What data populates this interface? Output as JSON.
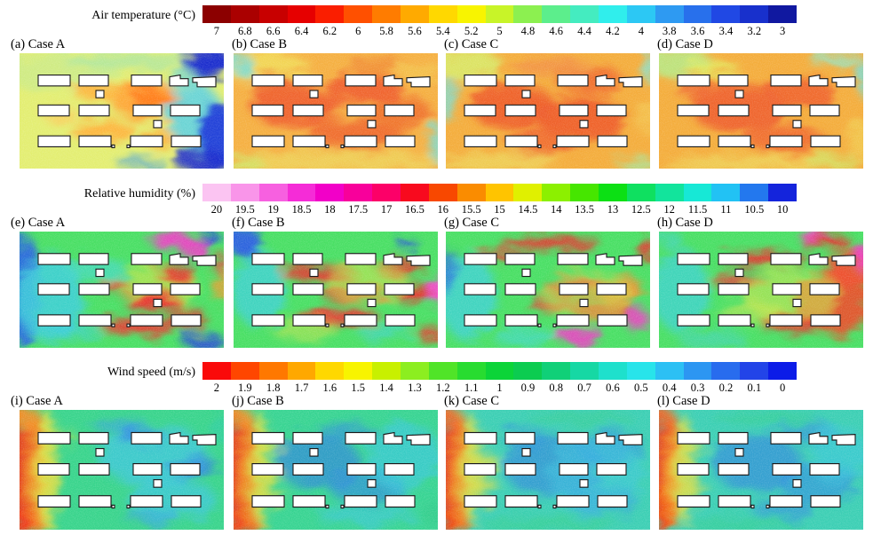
{
  "figure": {
    "sections": [
      {
        "id": "air-temperature",
        "colorbar": {
          "label": "Air temperature (°C)",
          "ticks": [
            "7",
            "6.8",
            "6.6",
            "6.4",
            "6.2",
            "6",
            "5.8",
            "5.6",
            "5.4",
            "5.2",
            "5",
            "4.8",
            "4.6",
            "4.4",
            "4.2",
            "4",
            "3.8",
            "3.6",
            "3.4",
            "3.2",
            "3"
          ],
          "colors": [
            "#8c0000",
            "#aa0000",
            "#c80000",
            "#e60000",
            "#fa1e00",
            "#ff5000",
            "#ff7c00",
            "#ffaa00",
            "#ffd800",
            "#f8f400",
            "#c8f428",
            "#8cf050",
            "#5cee8c",
            "#44ecc0",
            "#30eeec",
            "#2cc8f4",
            "#2e9af2",
            "#2870ec",
            "#2048e4",
            "#1830cc",
            "#1018a0"
          ]
        },
        "panels": [
          {
            "label": "(a) Case A"
          },
          {
            "label": "(b) Case B"
          },
          {
            "label": "(c) Case C"
          },
          {
            "label": "(d) Case D"
          }
        ]
      },
      {
        "id": "relative-humidity",
        "colorbar": {
          "label": "Relative humidity (%)",
          "ticks": [
            "20",
            "19.5",
            "19",
            "18.5",
            "18",
            "17.5",
            "17",
            "16.5",
            "16",
            "15.5",
            "15",
            "14.5",
            "14",
            "13.5",
            "13",
            "12.5",
            "12",
            "11.5",
            "11",
            "10.5",
            "10"
          ],
          "colors": [
            "#fbc4f2",
            "#f995e9",
            "#f760e0",
            "#f52cd7",
            "#f200c8",
            "#f8009b",
            "#fc0068",
            "#f80a1e",
            "#f84800",
            "#fa8c00",
            "#ffc400",
            "#e0f000",
            "#8cf000",
            "#46e600",
            "#0ce014",
            "#0fe060",
            "#12e49c",
            "#17e8d6",
            "#22c2f4",
            "#2378ee",
            "#1424dc"
          ]
        },
        "panels": [
          {
            "label": "(e) Case A"
          },
          {
            "label": "(f) Case B"
          },
          {
            "label": "(g) Case C"
          },
          {
            "label": "(h) Case D"
          }
        ]
      },
      {
        "id": "wind-speed",
        "colorbar": {
          "label": "Wind speed (m/s)",
          "ticks": [
            "2",
            "1.9",
            "1.8",
            "1.7",
            "1.6",
            "1.5",
            "1.4",
            "1.3",
            "1.2",
            "1.1",
            "1",
            "0.9",
            "0.8",
            "0.7",
            "0.6",
            "0.5",
            "0.4",
            "0.3",
            "0.2",
            "0.1",
            "0"
          ],
          "colors": [
            "#fa0a0a",
            "#ff4600",
            "#ff7800",
            "#ffa800",
            "#ffd800",
            "#f8f400",
            "#c8f000",
            "#8cee20",
            "#50e428",
            "#28dc30",
            "#0cd438",
            "#0ccc50",
            "#10d078",
            "#16d8a4",
            "#1ee0cc",
            "#28e4ea",
            "#2cc0f4",
            "#2c96f2",
            "#286cee",
            "#2244e8",
            "#0c1ce8"
          ]
        },
        "panels": [
          {
            "label": "(i) Case A"
          },
          {
            "label": "(j) Case B"
          },
          {
            "label": "(k) Case C"
          },
          {
            "label": "(l) Case D"
          }
        ]
      }
    ]
  },
  "chart_data": [
    {
      "type": "heatmap",
      "title": "Air temperature (°C)",
      "variable": "Air temperature",
      "unit": "°C",
      "colorbar": {
        "orientation": "horizontal",
        "position": "top",
        "ticks": [
          7,
          6.8,
          6.6,
          6.4,
          6.2,
          6,
          5.8,
          5.6,
          5.4,
          5.2,
          5,
          4.8,
          4.6,
          4.4,
          4.2,
          4,
          3.8,
          3.6,
          3.4,
          3.2,
          3
        ],
        "range": [
          3,
          7
        ],
        "order": "high-to-low left-to-right",
        "segments": 21
      },
      "panels": [
        {
          "label": "(a) Case A",
          "pattern": "mostly yellow-green field, orange warm patches mid-domain, dark blue cold region along right edge and top-right corner"
        },
        {
          "label": "(b) Case B",
          "pattern": "predominantly orange field with red-orange hot streaks between building rows, yellow margins"
        },
        {
          "label": "(c) Case C",
          "pattern": "predominantly orange with red hot cores center and lower-center, yellow-green top-left corner"
        },
        {
          "label": "(d) Case D",
          "pattern": "predominantly orange with red hot cores, green-cyan patch top-left corner, cyan slivers right edge"
        }
      ]
    },
    {
      "type": "heatmap",
      "title": "Relative humidity (%)",
      "variable": "Relative humidity",
      "unit": "%",
      "colorbar": {
        "orientation": "horizontal",
        "position": "top",
        "ticks": [
          20,
          19.5,
          19,
          18.5,
          18,
          17.5,
          17,
          16.5,
          16,
          15.5,
          15,
          14.5,
          14,
          13.5,
          13,
          12.5,
          12,
          11.5,
          11,
          10.5,
          10
        ],
        "range": [
          10,
          20
        ],
        "order": "high-to-low left-to-right",
        "segments": 21
      },
      "panels": [
        {
          "label": "(e) Case A",
          "pattern": "green field, blue-cyan moist zone left third, red dry streaks center-right, magenta spots top-right, dark blue bottom-right"
        },
        {
          "label": "(f) Case B",
          "pattern": "green field, blue top-left corner, cyan left zone, network of red dry streaks across middle and right"
        },
        {
          "label": "(g) Case C",
          "pattern": "green field, cyan left zone, red streaks top and center-right, orange patch right-middle, magenta spots bottom-right"
        },
        {
          "label": "(h) Case D",
          "pattern": "green field, cyan left zone, large red-orange dry region right half with magenta fringes"
        }
      ]
    },
    {
      "type": "heatmap",
      "title": "Wind speed (m/s)",
      "variable": "Wind speed",
      "unit": "m/s",
      "colorbar": {
        "orientation": "horizontal",
        "position": "top",
        "ticks": [
          2,
          1.9,
          1.8,
          1.7,
          1.6,
          1.5,
          1.4,
          1.3,
          1.2,
          1.1,
          1,
          0.9,
          0.8,
          0.7,
          0.6,
          0.5,
          0.4,
          0.3,
          0.2,
          0.1,
          0
        ],
        "range": [
          0,
          2
        ],
        "order": "high-to-low left-to-right",
        "segments": 21
      },
      "panels": [
        {
          "label": "(i) Case A",
          "pattern": "red-orange high-speed band at left inflow edge, yellow transition, green field with cyan-blue wake zones among buildings"
        },
        {
          "label": "(j) Case B",
          "pattern": "red left inflow edge with yellow jets between first building column, extensive blue low-speed wakes center"
        },
        {
          "label": "(k) Case C",
          "pattern": "red-orange left inflow edge, yellow jets, blue-cyan low-speed region dominating center and right"
        },
        {
          "label": "(l) Case D",
          "pattern": "red-orange left inflow edge, yellow jets, blue-cyan low-speed region over most of the building array"
        }
      ]
    }
  ]
}
